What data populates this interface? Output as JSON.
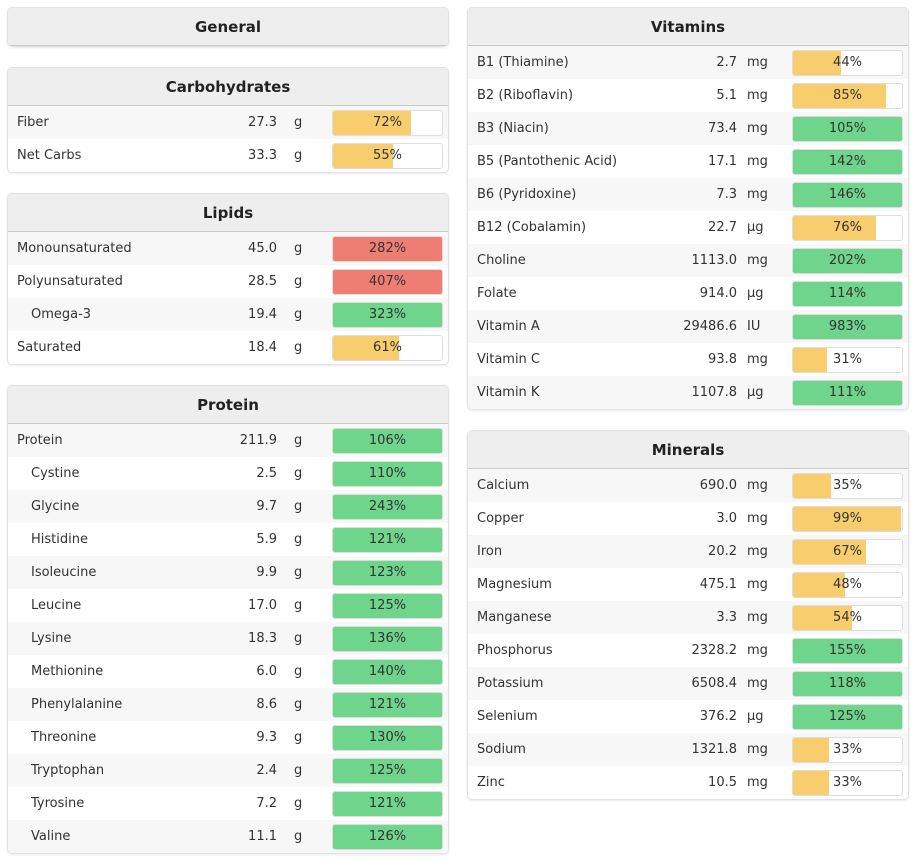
{
  "colors": {
    "ok": "#6fd48c",
    "low": "#f7cd6d",
    "high": "#ee7e74"
  },
  "left": [
    {
      "title": "General",
      "rows": []
    },
    {
      "title": "Carbohydrates",
      "rows": [
        {
          "name": "Fiber",
          "value": "27.3",
          "unit": "g",
          "pct": 72,
          "label": "72%",
          "status": "low"
        },
        {
          "name": "Net Carbs",
          "value": "33.3",
          "unit": "g",
          "pct": 55,
          "label": "55%",
          "status": "low"
        }
      ]
    },
    {
      "title": "Lipids",
      "rows": [
        {
          "name": "Monounsaturated",
          "value": "45.0",
          "unit": "g",
          "pct": 282,
          "label": "282%",
          "status": "high"
        },
        {
          "name": "Polyunsaturated",
          "value": "28.5",
          "unit": "g",
          "pct": 407,
          "label": "407%",
          "status": "high"
        },
        {
          "name": "Omega-3",
          "value": "19.4",
          "unit": "g",
          "pct": 323,
          "label": "323%",
          "status": "ok",
          "indent": true
        },
        {
          "name": "Saturated",
          "value": "18.4",
          "unit": "g",
          "pct": 61,
          "label": "61%",
          "status": "low"
        }
      ]
    },
    {
      "title": "Protein",
      "rows": [
        {
          "name": "Protein",
          "value": "211.9",
          "unit": "g",
          "pct": 106,
          "label": "106%",
          "status": "ok"
        },
        {
          "name": "Cystine",
          "value": "2.5",
          "unit": "g",
          "pct": 110,
          "label": "110%",
          "status": "ok",
          "indent": true
        },
        {
          "name": "Glycine",
          "value": "9.7",
          "unit": "g",
          "pct": 243,
          "label": "243%",
          "status": "ok",
          "indent": true
        },
        {
          "name": "Histidine",
          "value": "5.9",
          "unit": "g",
          "pct": 121,
          "label": "121%",
          "status": "ok",
          "indent": true
        },
        {
          "name": "Isoleucine",
          "value": "9.9",
          "unit": "g",
          "pct": 123,
          "label": "123%",
          "status": "ok",
          "indent": true
        },
        {
          "name": "Leucine",
          "value": "17.0",
          "unit": "g",
          "pct": 125,
          "label": "125%",
          "status": "ok",
          "indent": true
        },
        {
          "name": "Lysine",
          "value": "18.3",
          "unit": "g",
          "pct": 136,
          "label": "136%",
          "status": "ok",
          "indent": true
        },
        {
          "name": "Methionine",
          "value": "6.0",
          "unit": "g",
          "pct": 140,
          "label": "140%",
          "status": "ok",
          "indent": true
        },
        {
          "name": "Phenylalanine",
          "value": "8.6",
          "unit": "g",
          "pct": 121,
          "label": "121%",
          "status": "ok",
          "indent": true
        },
        {
          "name": "Threonine",
          "value": "9.3",
          "unit": "g",
          "pct": 130,
          "label": "130%",
          "status": "ok",
          "indent": true
        },
        {
          "name": "Tryptophan",
          "value": "2.4",
          "unit": "g",
          "pct": 125,
          "label": "125%",
          "status": "ok",
          "indent": true
        },
        {
          "name": "Tyrosine",
          "value": "7.2",
          "unit": "g",
          "pct": 121,
          "label": "121%",
          "status": "ok",
          "indent": true
        },
        {
          "name": "Valine",
          "value": "11.1",
          "unit": "g",
          "pct": 126,
          "label": "126%",
          "status": "ok",
          "indent": true
        }
      ]
    }
  ],
  "right": [
    {
      "title": "Vitamins",
      "rows": [
        {
          "name": "B1 (Thiamine)",
          "value": "2.7",
          "unit": "mg",
          "pct": 44,
          "label": "44%",
          "status": "low"
        },
        {
          "name": "B2 (Riboflavin)",
          "value": "5.1",
          "unit": "mg",
          "pct": 85,
          "label": "85%",
          "status": "low"
        },
        {
          "name": "B3 (Niacin)",
          "value": "73.4",
          "unit": "mg",
          "pct": 105,
          "label": "105%",
          "status": "ok"
        },
        {
          "name": "B5 (Pantothenic Acid)",
          "value": "17.1",
          "unit": "mg",
          "pct": 142,
          "label": "142%",
          "status": "ok"
        },
        {
          "name": "B6 (Pyridoxine)",
          "value": "7.3",
          "unit": "mg",
          "pct": 146,
          "label": "146%",
          "status": "ok"
        },
        {
          "name": "B12 (Cobalamin)",
          "value": "22.7",
          "unit": "µg",
          "pct": 76,
          "label": "76%",
          "status": "low"
        },
        {
          "name": "Choline",
          "value": "1113.0",
          "unit": "mg",
          "pct": 202,
          "label": "202%",
          "status": "ok"
        },
        {
          "name": "Folate",
          "value": "914.0",
          "unit": "µg",
          "pct": 114,
          "label": "114%",
          "status": "ok"
        },
        {
          "name": "Vitamin A",
          "value": "29486.6",
          "unit": "IU",
          "pct": 983,
          "label": "983%",
          "status": "ok"
        },
        {
          "name": "Vitamin C",
          "value": "93.8",
          "unit": "mg",
          "pct": 31,
          "label": "31%",
          "status": "low"
        },
        {
          "name": "Vitamin K",
          "value": "1107.8",
          "unit": "µg",
          "pct": 111,
          "label": "111%",
          "status": "ok"
        }
      ]
    },
    {
      "title": "Minerals",
      "rows": [
        {
          "name": "Calcium",
          "value": "690.0",
          "unit": "mg",
          "pct": 35,
          "label": "35%",
          "status": "low"
        },
        {
          "name": "Copper",
          "value": "3.0",
          "unit": "mg",
          "pct": 99,
          "label": "99%",
          "status": "low"
        },
        {
          "name": "Iron",
          "value": "20.2",
          "unit": "mg",
          "pct": 67,
          "label": "67%",
          "status": "low"
        },
        {
          "name": "Magnesium",
          "value": "475.1",
          "unit": "mg",
          "pct": 48,
          "label": "48%",
          "status": "low"
        },
        {
          "name": "Manganese",
          "value": "3.3",
          "unit": "mg",
          "pct": 54,
          "label": "54%",
          "status": "low"
        },
        {
          "name": "Phosphorus",
          "value": "2328.2",
          "unit": "mg",
          "pct": 155,
          "label": "155%",
          "status": "ok"
        },
        {
          "name": "Potassium",
          "value": "6508.4",
          "unit": "mg",
          "pct": 118,
          "label": "118%",
          "status": "ok"
        },
        {
          "name": "Selenium",
          "value": "376.2",
          "unit": "µg",
          "pct": 125,
          "label": "125%",
          "status": "ok"
        },
        {
          "name": "Sodium",
          "value": "1321.8",
          "unit": "mg",
          "pct": 33,
          "label": "33%",
          "status": "low"
        },
        {
          "name": "Zinc",
          "value": "10.5",
          "unit": "mg",
          "pct": 33,
          "label": "33%",
          "status": "low"
        }
      ]
    }
  ]
}
